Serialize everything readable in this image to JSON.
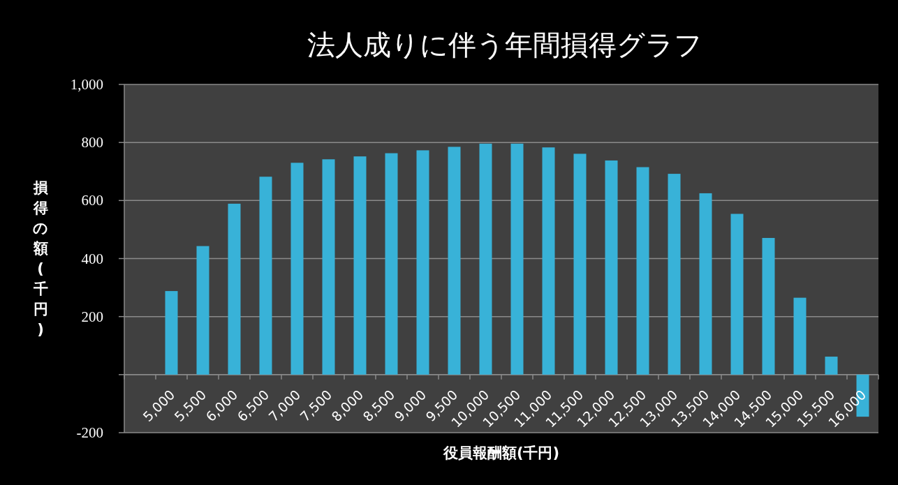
{
  "chart_data": {
    "type": "bar",
    "title": "法人成りに伴う年間損得グラフ",
    "xlabel": "役員報酬額(千円)",
    "ylabel": "損得の額(千円)",
    "categories": [
      null,
      "5,000",
      "5,500",
      "6,000",
      "6,500",
      "7,000",
      "7,500",
      "8,000",
      "8,500",
      "9,000",
      "9,500",
      "10,000",
      "10,500",
      "11,000",
      "11,500",
      "12,000",
      "12,500",
      "13,000",
      "13,500",
      "14,000",
      "14,500",
      "15,000",
      "15,500",
      "16,000"
    ],
    "values": [
      null,
      288,
      443,
      589,
      682,
      730,
      742,
      752,
      763,
      773,
      785,
      796,
      796,
      783,
      761,
      738,
      715,
      692,
      625,
      554,
      471,
      265,
      62,
      -145
    ],
    "color": "#38b2d8",
    "ylim": [
      -200,
      1000
    ],
    "yticks": [
      {
        "value": -200,
        "label": "-200"
      },
      {
        "value": 0,
        "label": null
      },
      {
        "value": 200,
        "label": "200"
      },
      {
        "value": 400,
        "label": "400"
      },
      {
        "value": 600,
        "label": "600"
      },
      {
        "value": 800,
        "label": "800"
      },
      {
        "value": 1000,
        "label": "1,000"
      }
    ],
    "grid": "y"
  }
}
